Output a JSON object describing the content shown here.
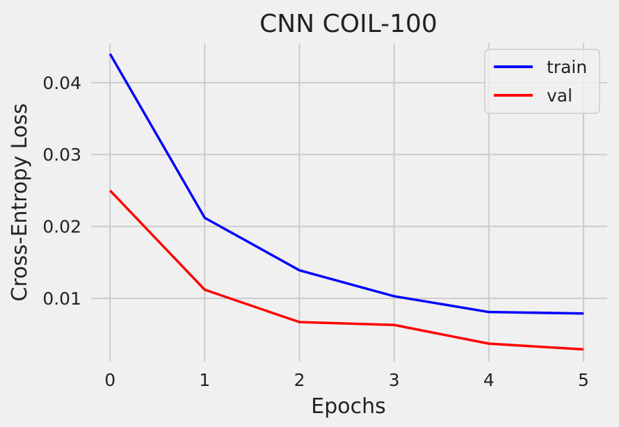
{
  "chart_data": {
    "type": "line",
    "title": "CNN COIL-100",
    "xlabel": "Epochs",
    "ylabel": "Cross-Entropy Loss",
    "x": [
      0,
      1,
      2,
      3,
      4,
      5
    ],
    "x_ticks": [
      "0",
      "1",
      "2",
      "3",
      "4",
      "5"
    ],
    "y_ticks": [
      "0.01",
      "0.02",
      "0.03",
      "0.04"
    ],
    "y_tick_values": [
      0.01,
      0.02,
      0.03,
      0.04
    ],
    "xlim": [
      -0.2,
      5.25
    ],
    "ylim": [
      0.0012,
      0.0455
    ],
    "grid": true,
    "legend_position": "top-right",
    "series": [
      {
        "name": "train",
        "color": "#0000ff",
        "values": [
          0.044,
          0.0212,
          0.0139,
          0.0103,
          0.0081,
          0.0079
        ]
      },
      {
        "name": "val",
        "color": "#ff0000",
        "values": [
          0.025,
          0.0112,
          0.0067,
          0.0063,
          0.0037,
          0.0029
        ]
      }
    ]
  }
}
